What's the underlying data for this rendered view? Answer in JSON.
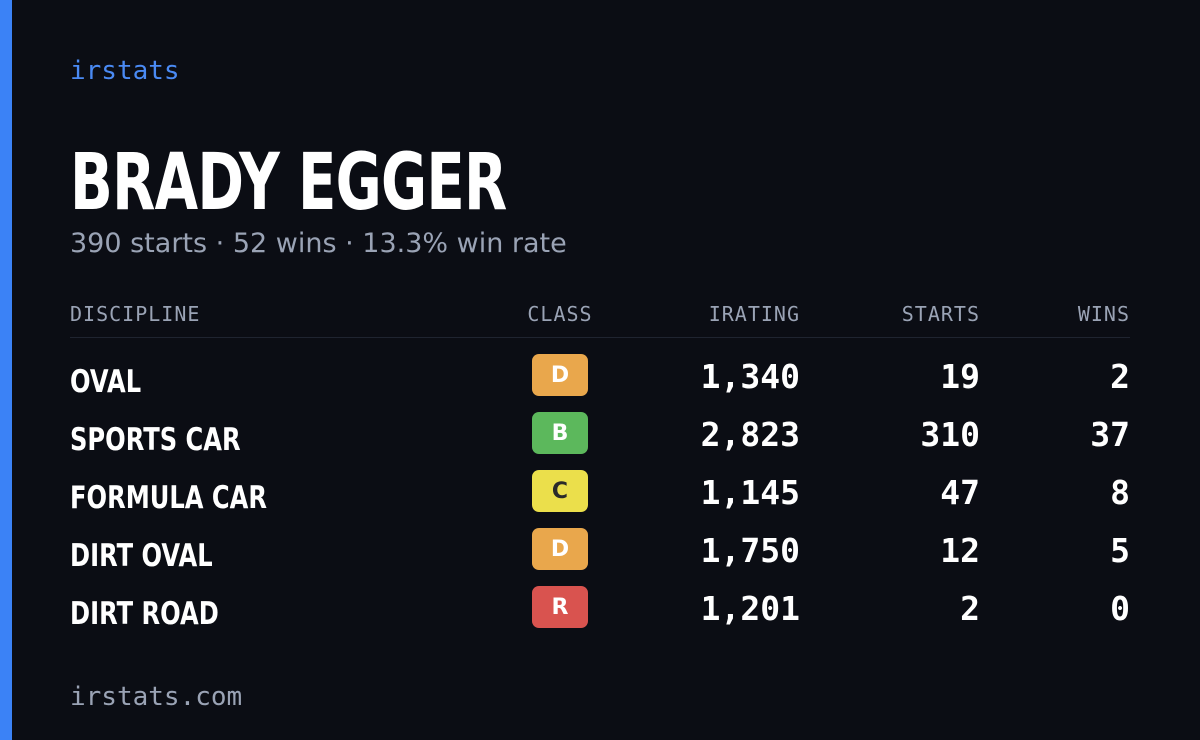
{
  "brand": "irstats",
  "driver": {
    "name": "BRADY EGGER",
    "summary": "390 starts · 52 wins · 13.3% win rate"
  },
  "table": {
    "headers": [
      "DISCIPLINE",
      "CLASS",
      "IRATING",
      "STARTS",
      "WINS"
    ],
    "rows": [
      {
        "discipline": "OVAL",
        "class": "D",
        "class_color": "#e9a74c",
        "irating": "1,340",
        "starts": "19",
        "wins": "2"
      },
      {
        "discipline": "SPORTS CAR",
        "class": "B",
        "class_color": "#5cb85c",
        "irating": "2,823",
        "starts": "310",
        "wins": "37"
      },
      {
        "discipline": "FORMULA CAR",
        "class": "C",
        "class_color": "#ebdf4b",
        "irating": "1,145",
        "starts": "47",
        "wins": "8"
      },
      {
        "discipline": "DIRT OVAL",
        "class": "D",
        "class_color": "#e9a74c",
        "irating": "1,750",
        "starts": "12",
        "wins": "5"
      },
      {
        "discipline": "DIRT ROAD",
        "class": "R",
        "class_color": "#d9534f",
        "irating": "1,201",
        "starts": "2",
        "wins": "0"
      }
    ]
  },
  "footer": "irstats.com"
}
